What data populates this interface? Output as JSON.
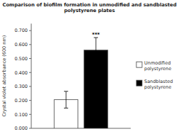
{
  "chart_data": {
    "type": "bar",
    "title": "Comparison of biofilm formation in unmodified and sandblasted\npolystyrene plates",
    "ylabel": "Crystal violet absorbance (600 nm)",
    "categories": [
      null
    ],
    "series": [
      {
        "name": "Unmodified\npolystyrene",
        "color": "white",
        "values": [
          0.205
        ],
        "errors": [
          0.06
        ]
      },
      {
        "name": "Sandblasted\npolystyrene",
        "color": "black",
        "values": [
          0.56
        ],
        "errors": [
          0.09
        ]
      }
    ],
    "ylim": [
      0,
      0.75
    ],
    "yticks": [
      {
        "value": 0.0,
        "label": "0.000"
      },
      {
        "value": 0.1,
        "label": "0.100"
      },
      {
        "value": 0.2,
        "label": "0.200"
      },
      {
        "value": 0.3,
        "label": "0.300"
      },
      {
        "value": 0.4,
        "label": "0.400"
      },
      {
        "value": 0.5,
        "label": "0.500"
      },
      {
        "value": 0.6,
        "label": "0.600"
      },
      {
        "value": 0.7,
        "label": "0.700"
      }
    ],
    "annotations": [
      {
        "text": "***",
        "series": 1,
        "index": 0
      }
    ],
    "legend": "right",
    "grid": false,
    "tick_labels": "y"
  }
}
